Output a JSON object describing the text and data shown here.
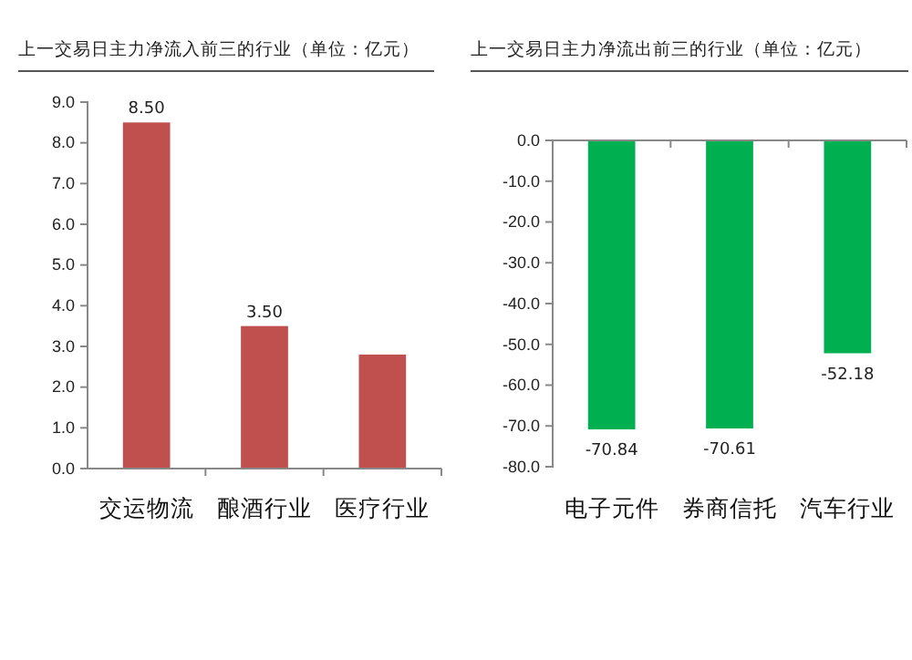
{
  "chart_data": [
    {
      "type": "bar",
      "title": "上一交易日主力净流入前三的行业（单位：亿元）",
      "categories": [
        "交运物流",
        "酿酒行业",
        "医疗行业"
      ],
      "values": [
        8.5,
        3.5,
        2.8
      ],
      "color": "#c0504d",
      "value_labels": [
        "8.50",
        "3.50",
        null
      ],
      "ylim": [
        0,
        9
      ],
      "yticks": [
        {
          "value": 0,
          "label": "0.0"
        },
        {
          "value": 1,
          "label": "1.0"
        },
        {
          "value": 2,
          "label": "2.0"
        },
        {
          "value": 3,
          "label": "3.0"
        },
        {
          "value": 4,
          "label": "4.0"
        },
        {
          "value": 5,
          "label": "5.0"
        },
        {
          "value": 6,
          "label": "6.0"
        },
        {
          "value": 7,
          "label": "7.0"
        },
        {
          "value": 8,
          "label": "8.0"
        },
        {
          "value": 9,
          "label": "9.0"
        }
      ]
    },
    {
      "type": "bar",
      "title": "上一交易日主力净流出前三的行业（单位：亿元）",
      "categories": [
        "电子元件",
        "券商信托",
        "汽车行业"
      ],
      "values": [
        -70.84,
        -70.61,
        -52.18
      ],
      "color": "#00b050",
      "data_labels": true,
      "ylim": [
        -80,
        0
      ],
      "yticks": [
        {
          "value": 0,
          "label": "0.0"
        },
        {
          "value": -10,
          "label": "-10.0"
        },
        {
          "value": -20,
          "label": "-20.0"
        },
        {
          "value": -30,
          "label": "-30.0"
        },
        {
          "value": -40,
          "label": "-40.0"
        },
        {
          "value": -50,
          "label": "-50.0"
        },
        {
          "value": -60,
          "label": "-60.0"
        },
        {
          "value": -70,
          "label": "-70.0"
        },
        {
          "value": -80,
          "label": "-80.0"
        }
      ]
    }
  ]
}
